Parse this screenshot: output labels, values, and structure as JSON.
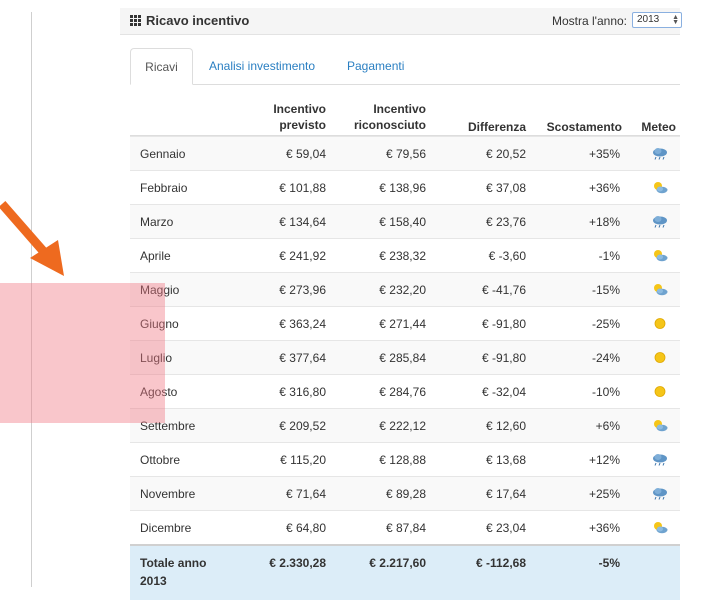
{
  "panel": {
    "title": "Ricavo incentivo",
    "year_label": "Mostra l'anno:",
    "year_value": "2013"
  },
  "tabs": [
    {
      "label": "Ricavi"
    },
    {
      "label": "Analisi investimento"
    },
    {
      "label": "Pagamenti"
    }
  ],
  "columns": {
    "previsto_1": "Incentivo",
    "previsto_2": "previsto",
    "riconosciuto_1": "Incentivo",
    "riconosciuto_2": "riconosciuto",
    "differenza": "Differenza",
    "scostamento": "Scostamento",
    "meteo": "Meteo"
  },
  "rows": [
    {
      "month": "Gennaio",
      "previsto": "€ 59,04",
      "riconosciuto": "€ 79,56",
      "differenza": "€ 20,52",
      "scostamento": "+35%",
      "weather": "cloud-rain-icon"
    },
    {
      "month": "Febbraio",
      "previsto": "€ 101,88",
      "riconosciuto": "€ 138,96",
      "differenza": "€ 37,08",
      "scostamento": "+36%",
      "weather": "sun-cloud-icon"
    },
    {
      "month": "Marzo",
      "previsto": "€ 134,64",
      "riconosciuto": "€ 158,40",
      "differenza": "€ 23,76",
      "scostamento": "+18%",
      "weather": "cloud-rain-icon"
    },
    {
      "month": "Aprile",
      "previsto": "€ 241,92",
      "riconosciuto": "€ 238,32",
      "differenza": "€ -3,60",
      "scostamento": "-1%",
      "weather": "sun-cloud-icon"
    },
    {
      "month": "Maggio",
      "previsto": "€ 273,96",
      "riconosciuto": "€ 232,20",
      "differenza": "€ -41,76",
      "scostamento": "-15%",
      "weather": "sun-cloud-icon"
    },
    {
      "month": "Giugno",
      "previsto": "€ 363,24",
      "riconosciuto": "€ 271,44",
      "differenza": "€ -91,80",
      "scostamento": "-25%",
      "weather": "sun-icon"
    },
    {
      "month": "Luglio",
      "previsto": "€ 377,64",
      "riconosciuto": "€ 285,84",
      "differenza": "€ -91,80",
      "scostamento": "-24%",
      "weather": "sun-icon"
    },
    {
      "month": "Agosto",
      "previsto": "€ 316,80",
      "riconosciuto": "€ 284,76",
      "differenza": "€ -32,04",
      "scostamento": "-10%",
      "weather": "sun-icon"
    },
    {
      "month": "Settembre",
      "previsto": "€ 209,52",
      "riconosciuto": "€ 222,12",
      "differenza": "€ 12,60",
      "scostamento": "+6%",
      "weather": "sun-cloud-icon"
    },
    {
      "month": "Ottobre",
      "previsto": "€ 115,20",
      "riconosciuto": "€ 128,88",
      "differenza": "€ 13,68",
      "scostamento": "+12%",
      "weather": "cloud-rain-icon"
    },
    {
      "month": "Novembre",
      "previsto": "€ 71,64",
      "riconosciuto": "€ 89,28",
      "differenza": "€ 17,64",
      "scostamento": "+25%",
      "weather": "cloud-rain-icon"
    },
    {
      "month": "Dicembre",
      "previsto": "€ 64,80",
      "riconosciuto": "€ 87,84",
      "differenza": "€ 23,04",
      "scostamento": "+36%",
      "weather": "sun-cloud-icon"
    }
  ],
  "total": {
    "label": "Totale anno",
    "year": "2013",
    "previsto": "€ 2.330,28",
    "riconosciuto": "€ 2.217,60",
    "differenza": "€ -112,68",
    "scostamento": "-5%"
  },
  "colors": {
    "accent_link": "#2a7fc2",
    "total_bg": "#dcedf8",
    "arrow": "#ee6a1f",
    "highlight": "#f07882"
  }
}
